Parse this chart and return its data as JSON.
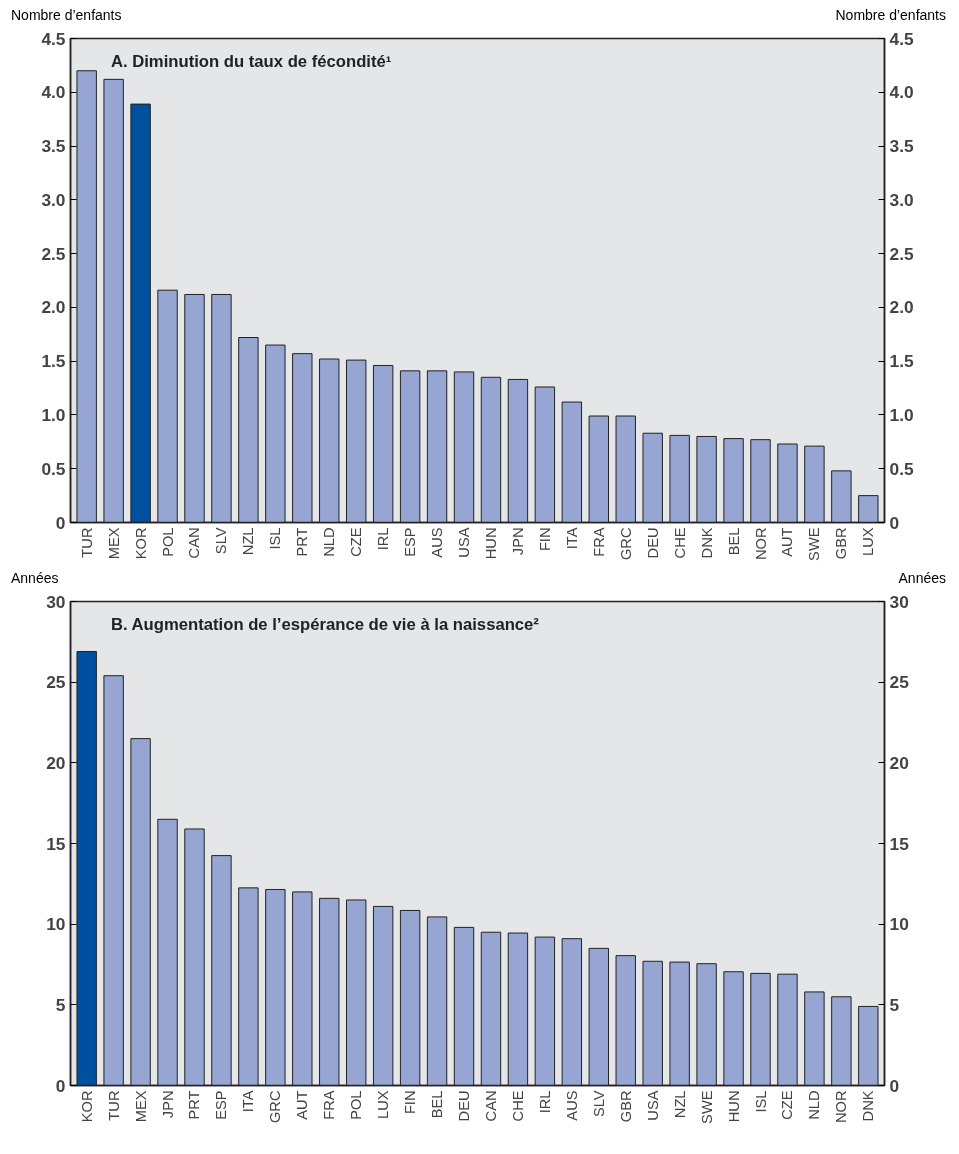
{
  "chart_data": [
    {
      "type": "bar",
      "title": "A.  Diminution du taux de fécondité¹",
      "ylabel": "Nombre d’enfants",
      "y2label": "Nombre d’enfants",
      "categories": [
        "TUR",
        "MEX",
        "KOR",
        "POL",
        "CAN",
        "SLV",
        "NZL",
        "ISL",
        "PRT",
        "NLD",
        "CZE",
        "IRL",
        "ESP",
        "AUS",
        "USA",
        "HUN",
        "JPN",
        "FIN",
        "ITA",
        "FRA",
        "GRC",
        "DEU",
        "CHE",
        "DNK",
        "BEL",
        "NOR",
        "AUT",
        "SWE",
        "GBR",
        "LUX"
      ],
      "values": [
        4.2,
        4.12,
        3.89,
        2.16,
        2.12,
        2.12,
        1.72,
        1.65,
        1.57,
        1.52,
        1.51,
        1.46,
        1.41,
        1.41,
        1.4,
        1.35,
        1.33,
        1.26,
        1.12,
        0.99,
        0.99,
        0.83,
        0.81,
        0.8,
        0.78,
        0.77,
        0.73,
        0.71,
        0.48,
        0.25
      ],
      "colors": [
        "#96a5d2",
        "#96a5d2",
        "#0050a0",
        "#96a5d2",
        "#96a5d2",
        "#96a5d2",
        "#96a5d2",
        "#96a5d2",
        "#96a5d2",
        "#96a5d2",
        "#96a5d2",
        "#96a5d2",
        "#96a5d2",
        "#96a5d2",
        "#96a5d2",
        "#96a5d2",
        "#96a5d2",
        "#96a5d2",
        "#96a5d2",
        "#96a5d2",
        "#96a5d2",
        "#96a5d2",
        "#96a5d2",
        "#96a5d2",
        "#96a5d2",
        "#96a5d2",
        "#96a5d2",
        "#96a5d2",
        "#96a5d2",
        "#96a5d2"
      ],
      "ylim": [
        0,
        4.5
      ],
      "yticks": [
        0,
        0.5,
        {
          "value": 1,
          "label": "1.0"
        },
        1.5,
        {
          "value": 2,
          "label": "2.0"
        },
        2.5,
        {
          "value": 3,
          "label": "3.0"
        },
        3.5,
        {
          "value": 4,
          "label": "4.0"
        },
        4.5
      ],
      "y2lim": [
        0,
        4.5
      ],
      "y2ticks": [
        0,
        0.5,
        {
          "value": 1,
          "label": "1.0"
        },
        1.5,
        {
          "value": 2,
          "label": "2.0"
        },
        2.5,
        {
          "value": 3,
          "label": "3.0"
        },
        3.5,
        {
          "value": 4,
          "label": "4.0"
        },
        4.5
      ]
    },
    {
      "type": "bar",
      "title": "B.  Augmentation de l’espérance de vie à la naissance²",
      "ylabel": "Années",
      "y2label": "Années",
      "categories": [
        "KOR",
        "TUR",
        "MEX",
        "JPN",
        "PRT",
        "ESP",
        "ITA",
        "GRC",
        "AUT",
        "FRA",
        "POL",
        "LUX",
        "FIN",
        "BEL",
        "DEU",
        "CAN",
        "CHE",
        "IRL",
        "AUS",
        "SLV",
        "GBR",
        "USA",
        "NZL",
        "SWE",
        "HUN",
        "ISL",
        "CZE",
        "NLD",
        "NOR",
        "DNK"
      ],
      "values": [
        26.9,
        25.4,
        21.5,
        16.5,
        15.9,
        14.25,
        12.25,
        12.15,
        12.0,
        11.6,
        11.5,
        11.1,
        10.85,
        10.45,
        9.8,
        9.5,
        9.45,
        9.2,
        9.1,
        8.5,
        8.05,
        7.7,
        7.65,
        7.55,
        7.05,
        6.95,
        6.9,
        5.8,
        5.5,
        4.9
      ],
      "colors": [
        "#0050a0",
        "#96a5d2",
        "#96a5d2",
        "#96a5d2",
        "#96a5d2",
        "#96a5d2",
        "#96a5d2",
        "#96a5d2",
        "#96a5d2",
        "#96a5d2",
        "#96a5d2",
        "#96a5d2",
        "#96a5d2",
        "#96a5d2",
        "#96a5d2",
        "#96a5d2",
        "#96a5d2",
        "#96a5d2",
        "#96a5d2",
        "#96a5d2",
        "#96a5d2",
        "#96a5d2",
        "#96a5d2",
        "#96a5d2",
        "#96a5d2",
        "#96a5d2",
        "#96a5d2",
        "#96a5d2",
        "#96a5d2",
        "#96a5d2"
      ],
      "ylim": [
        0,
        30
      ],
      "yticks": [
        0,
        5,
        10,
        15,
        20,
        25,
        30
      ],
      "y2lim": [
        0,
        30
      ],
      "y2ticks": [
        0,
        5,
        10,
        15,
        20,
        25,
        30
      ]
    }
  ]
}
